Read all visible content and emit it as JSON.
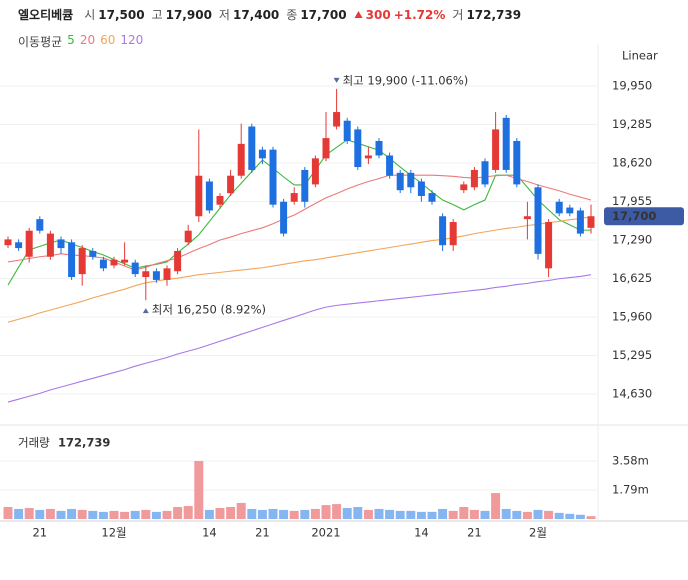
{
  "chart_data": {
    "type": "candlestick",
    "title": "엘오티베큠",
    "header": {
      "items": [
        {
          "label": "시",
          "value": "17,500"
        },
        {
          "label": "고",
          "value": "17,900"
        },
        {
          "label": "저",
          "value": "17,400"
        },
        {
          "label": "종",
          "value": "17,700"
        }
      ],
      "change": {
        "value": "300",
        "percent": "+1.72%"
      },
      "volume": {
        "label": "거",
        "value": "172,739"
      }
    },
    "scale": "Linear",
    "ma_label": "이동평균",
    "categories": [
      null,
      null,
      null,
      "21",
      null,
      null,
      null,
      null,
      null,
      null,
      "12월",
      null,
      null,
      null,
      null,
      null,
      null,
      null,
      null,
      "14",
      null,
      null,
      null,
      null,
      "21",
      null,
      null,
      null,
      null,
      null,
      "2021",
      null,
      null,
      null,
      null,
      null,
      null,
      null,
      null,
      "14",
      null,
      null,
      null,
      null,
      "21",
      null,
      null,
      null,
      null,
      null,
      "2월",
      null,
      null,
      null,
      null,
      null
    ],
    "open": [
      17200,
      17250,
      17000,
      17650,
      17000,
      17300,
      17250,
      16700,
      17100,
      16950,
      16850,
      16900,
      16900,
      16650,
      16750,
      16600,
      16750,
      17250,
      17700,
      18300,
      17900,
      18100,
      18400,
      19250,
      18850,
      18850,
      17950,
      17950,
      18500,
      18250,
      18700,
      19250,
      19350,
      19200,
      18700,
      19000,
      18750,
      18450,
      18450,
      18300,
      18100,
      17700,
      17200,
      18150,
      18200,
      18650,
      18500,
      19400,
      19000,
      17650,
      18200,
      16800,
      17950,
      17850,
      17800,
      17500
    ],
    "high": [
      17350,
      17300,
      17500,
      17700,
      17450,
      17350,
      17300,
      17200,
      17150,
      17000,
      17000,
      17250,
      16950,
      16850,
      16800,
      16850,
      17150,
      17550,
      19200,
      18350,
      18100,
      18500,
      19300,
      19300,
      18900,
      18900,
      18000,
      18200,
      18550,
      18750,
      19500,
      19900,
      19400,
      19250,
      18900,
      19050,
      18800,
      18500,
      18500,
      18350,
      18150,
      17750,
      17650,
      18300,
      18550,
      18700,
      19500,
      19450,
      19050,
      17950,
      18250,
      17650,
      18000,
      17900,
      17850,
      17900
    ],
    "low": [
      17150,
      17100,
      16900,
      17400,
      16950,
      17050,
      16600,
      16500,
      16950,
      16750,
      16800,
      16850,
      16650,
      16250,
      16550,
      16500,
      16700,
      17200,
      17600,
      17750,
      17850,
      18050,
      18350,
      18450,
      18600,
      17850,
      17350,
      17900,
      17850,
      18200,
      18650,
      19200,
      18950,
      18500,
      18600,
      18700,
      18350,
      18100,
      18100,
      17950,
      17900,
      17100,
      17100,
      18100,
      18150,
      18200,
      18450,
      18450,
      18200,
      17300,
      16950,
      16650,
      17700,
      17700,
      17350,
      17400
    ],
    "close": [
      17300,
      17150,
      17450,
      17450,
      17400,
      17150,
      16650,
      17150,
      17000,
      16800,
      16950,
      16950,
      16700,
      16750,
      16600,
      16800,
      17100,
      17450,
      18400,
      17800,
      18050,
      18400,
      18950,
      18500,
      18700,
      17900,
      17400,
      18100,
      17950,
      18700,
      19050,
      19500,
      19000,
      18550,
      18750,
      18750,
      18400,
      18150,
      18200,
      18050,
      17950,
      17200,
      17600,
      18250,
      18500,
      18250,
      19200,
      18500,
      18250,
      17700,
      17050,
      17600,
      17750,
      17750,
      17400,
      17700
    ],
    "ylim": [
      14180,
      20330
    ],
    "yticks": [
      {
        "value": 19950,
        "label": "19,950"
      },
      {
        "value": 19285,
        "label": "19,285"
      },
      {
        "value": 18620,
        "label": "18,620"
      },
      {
        "value": 17955,
        "label": "17,955"
      },
      {
        "value": 17290,
        "label": "17,290"
      },
      {
        "value": 16625,
        "label": "16,625"
      },
      {
        "value": 15960,
        "label": "15,960"
      },
      {
        "value": 15295,
        "label": "15,295"
      },
      {
        "value": 14630,
        "label": "14,630"
      }
    ],
    "grid": true,
    "up_color": "#e53935",
    "down_color": "#1e6fe0",
    "up_volume_color": "#f19a9c",
    "down_volume_color": "#86b6f2",
    "last_price_label": "17,700",
    "last_price_color": "#3d5aa5",
    "high_annotation": "최고 19,900 (-11.06%)",
    "low_annotation": "최저 16,250 (8.92%)",
    "annotation_color": "#5a6a9c",
    "moving_averages": [
      {
        "name": "5",
        "color": "#3cb83c",
        "values": [
          16510,
          16820,
          17120,
          17180,
          17240,
          17290,
          17220,
          17160,
          17090,
          17030,
          16950,
          16880,
          16800,
          16840,
          16870,
          16910,
          17070,
          17220,
          17380,
          17610,
          17840,
          18070,
          18270,
          18470,
          18670,
          18530,
          18380,
          18240,
          18240,
          18500,
          18760,
          18890,
          19020,
          18960,
          18900,
          18840,
          18700,
          18550,
          18410,
          18270,
          18120,
          17980,
          17900,
          17810,
          17900,
          17980,
          18410,
          18410,
          18410,
          18200,
          17980,
          17810,
          17640,
          17550,
          17460,
          17460
        ]
      },
      {
        "name": "20",
        "color": "#ec7a7a",
        "values": [
          16910,
          16940,
          16970,
          17000,
          17020,
          17050,
          17030,
          17020,
          17000,
          16980,
          16910,
          16840,
          16770,
          16820,
          16880,
          16930,
          16980,
          17060,
          17140,
          17210,
          17290,
          17340,
          17400,
          17450,
          17500,
          17570,
          17650,
          17720,
          17820,
          17920,
          18020,
          18090,
          18170,
          18240,
          18300,
          18350,
          18410,
          18410,
          18410,
          18410,
          18410,
          18400,
          18390,
          18370,
          18360,
          18380,
          18400,
          18410,
          18350,
          18300,
          18240,
          18190,
          18140,
          18080,
          18030,
          17980
        ]
      },
      {
        "name": "60",
        "color": "#f3a55a",
        "values": [
          15870,
          15920,
          15970,
          16030,
          16080,
          16130,
          16180,
          16230,
          16290,
          16340,
          16390,
          16440,
          16500,
          16550,
          16580,
          16610,
          16630,
          16660,
          16690,
          16710,
          16730,
          16750,
          16770,
          16790,
          16810,
          16840,
          16870,
          16900,
          16930,
          16950,
          16980,
          17010,
          17040,
          17070,
          17100,
          17130,
          17160,
          17190,
          17220,
          17250,
          17280,
          17300,
          17330,
          17360,
          17400,
          17430,
          17460,
          17490,
          17510,
          17540,
          17560,
          17590,
          17610,
          17640,
          17660,
          17690
        ]
      },
      {
        "name": "120",
        "color": "#a978e8",
        "values": [
          14490,
          14540,
          14590,
          14640,
          14700,
          14750,
          14800,
          14850,
          14900,
          14950,
          15000,
          15050,
          15110,
          15160,
          15210,
          15260,
          15320,
          15370,
          15420,
          15480,
          15540,
          15600,
          15660,
          15720,
          15780,
          15840,
          15900,
          15960,
          16020,
          16080,
          16130,
          16160,
          16180,
          16200,
          16220,
          16240,
          16260,
          16280,
          16300,
          16320,
          16340,
          16360,
          16380,
          16400,
          16420,
          16440,
          16470,
          16490,
          16520,
          16540,
          16570,
          16590,
          16620,
          16640,
          16660,
          16690
        ]
      }
    ],
    "volume": {
      "label": "거래량",
      "value_label": "172,739",
      "values": [
        740000,
        620000,
        680000,
        560000,
        620000,
        500000,
        620000,
        560000,
        500000,
        440000,
        500000,
        440000,
        500000,
        560000,
        440000,
        500000,
        740000,
        800000,
        3580000,
        560000,
        680000,
        740000,
        990000,
        620000,
        560000,
        620000,
        560000,
        500000,
        560000,
        620000,
        860000,
        920000,
        680000,
        740000,
        560000,
        620000,
        560000,
        500000,
        500000,
        440000,
        440000,
        620000,
        500000,
        740000,
        560000,
        500000,
        1600000,
        620000,
        500000,
        440000,
        560000,
        500000,
        380000,
        320000,
        260000,
        172739
      ],
      "ylim": [
        0,
        5490000
      ],
      "yticks": [
        {
          "value": 3580000,
          "label": "3.58m"
        },
        {
          "value": 1790000,
          "label": "1.79m"
        }
      ]
    }
  }
}
